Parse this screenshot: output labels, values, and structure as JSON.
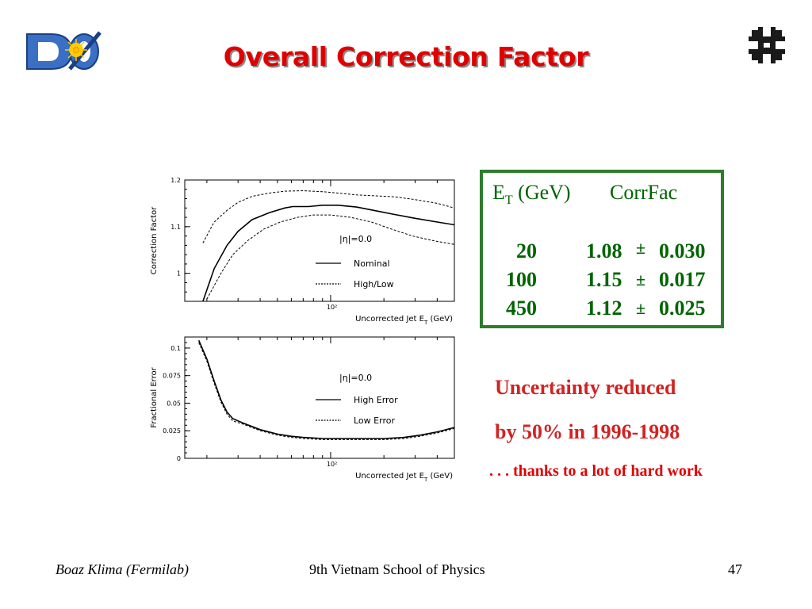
{
  "slide": {
    "title": "Overall Correction Factor",
    "logo_left_text": "DØ",
    "footer": {
      "left": "Boaz Klima (Fermilab)",
      "center": "9th Vietnam School of Physics",
      "right": "47"
    }
  },
  "table": {
    "header_et_main": "E",
    "header_et_sub": "T",
    "header_et_unit": " (GeV)",
    "header_corr": "CorrFac",
    "rows": [
      {
        "et": "20",
        "corr": "1.08",
        "pm": "±",
        "err": "0.030"
      },
      {
        "et": "100",
        "corr": "1.15",
        "pm": "±",
        "err": "0.017"
      },
      {
        "et": "450",
        "corr": "1.12",
        "pm": "±",
        "err": "0.025"
      }
    ]
  },
  "notes": {
    "line1": "Uncertainty reduced",
    "line2": "by 50%  in 1996-1998",
    "thanks": ". . . thanks to a lot of hard work"
  },
  "colors": {
    "title": "#e00000",
    "table_text": "#006400",
    "table_border": "#2e7d2e",
    "note": "#d22222"
  },
  "chart_data": [
    {
      "type": "line",
      "xscale": "log",
      "xlim": [
        15,
        500
      ],
      "ylim": [
        0.94,
        1.2
      ],
      "xtick_labels": [
        "10²"
      ],
      "ytick_labels": [
        "1",
        "1.1",
        "1.2"
      ],
      "ylabel": "Correction Factor",
      "xlabel": "Uncorrected Jet E",
      "xlabel_sub": "T",
      "xlabel_unit": " (GeV)",
      "annotation": "|η|=0.0",
      "legend": [
        "Nominal",
        "High/Low"
      ],
      "series": [
        {
          "name": "Nominal",
          "style": "solid",
          "x": [
            19,
            22,
            26,
            30,
            36,
            45,
            55,
            61,
            75,
            90,
            110,
            140,
            180,
            230,
            300,
            400,
            500
          ],
          "y": [
            0.94,
            1.01,
            1.06,
            1.09,
            1.115,
            1.13,
            1.14,
            1.143,
            1.143,
            1.146,
            1.146,
            1.142,
            1.134,
            1.126,
            1.118,
            1.11,
            1.104
          ]
        },
        {
          "name": "High/Low",
          "style": "dashed",
          "x": [
            19,
            22,
            26,
            30,
            36,
            45,
            55,
            70,
            90,
            110,
            140,
            180,
            230,
            300,
            400,
            500
          ],
          "y": [
            1.065,
            1.11,
            1.135,
            1.152,
            1.165,
            1.172,
            1.176,
            1.177,
            1.175,
            1.172,
            1.168,
            1.166,
            1.164,
            1.158,
            1.15,
            1.14
          ]
        },
        {
          "name": "High/Low",
          "style": "dashed",
          "x": [
            20,
            24,
            28,
            34,
            42,
            52,
            65,
            80,
            100,
            130,
            170,
            220,
            290,
            380,
            500
          ],
          "y": [
            0.945,
            1.0,
            1.04,
            1.07,
            1.095,
            1.11,
            1.12,
            1.125,
            1.125,
            1.12,
            1.11,
            1.095,
            1.08,
            1.07,
            1.062
          ]
        }
      ]
    },
    {
      "type": "line",
      "xscale": "log",
      "xlim": [
        15,
        500
      ],
      "ylim": [
        0,
        0.11
      ],
      "xtick_labels": [
        "10²"
      ],
      "ytick_labels": [
        "0",
        "0.025",
        "0.05",
        "0.075",
        "0.1"
      ],
      "ylabel": "Fractional Error",
      "xlabel": "Uncorrected Jet E",
      "xlabel_sub": "T",
      "xlabel_unit": " (GeV)",
      "annotation": "|η|=0.0",
      "legend": [
        "High Error",
        "Low Error"
      ],
      "series": [
        {
          "name": "High Error",
          "style": "solid",
          "x": [
            18,
            20,
            22,
            24,
            26,
            28,
            32,
            40,
            50,
            60,
            70,
            90,
            110,
            150,
            200,
            260,
            320,
            400,
            500
          ],
          "y": [
            0.107,
            0.09,
            0.07,
            0.053,
            0.042,
            0.036,
            0.032,
            0.026,
            0.022,
            0.02,
            0.019,
            0.018,
            0.018,
            0.018,
            0.018,
            0.019,
            0.021,
            0.024,
            0.028
          ]
        },
        {
          "name": "Low Error",
          "style": "dashed",
          "x": [
            18,
            20,
            22,
            24,
            26,
            28,
            32,
            40,
            50,
            60,
            70,
            90,
            110,
            150,
            200,
            260,
            320,
            400,
            500
          ],
          "y": [
            0.105,
            0.088,
            0.068,
            0.051,
            0.04,
            0.034,
            0.031,
            0.025,
            0.021,
            0.019,
            0.018,
            0.017,
            0.017,
            0.017,
            0.017,
            0.018,
            0.02,
            0.023,
            0.027
          ]
        }
      ]
    }
  ]
}
